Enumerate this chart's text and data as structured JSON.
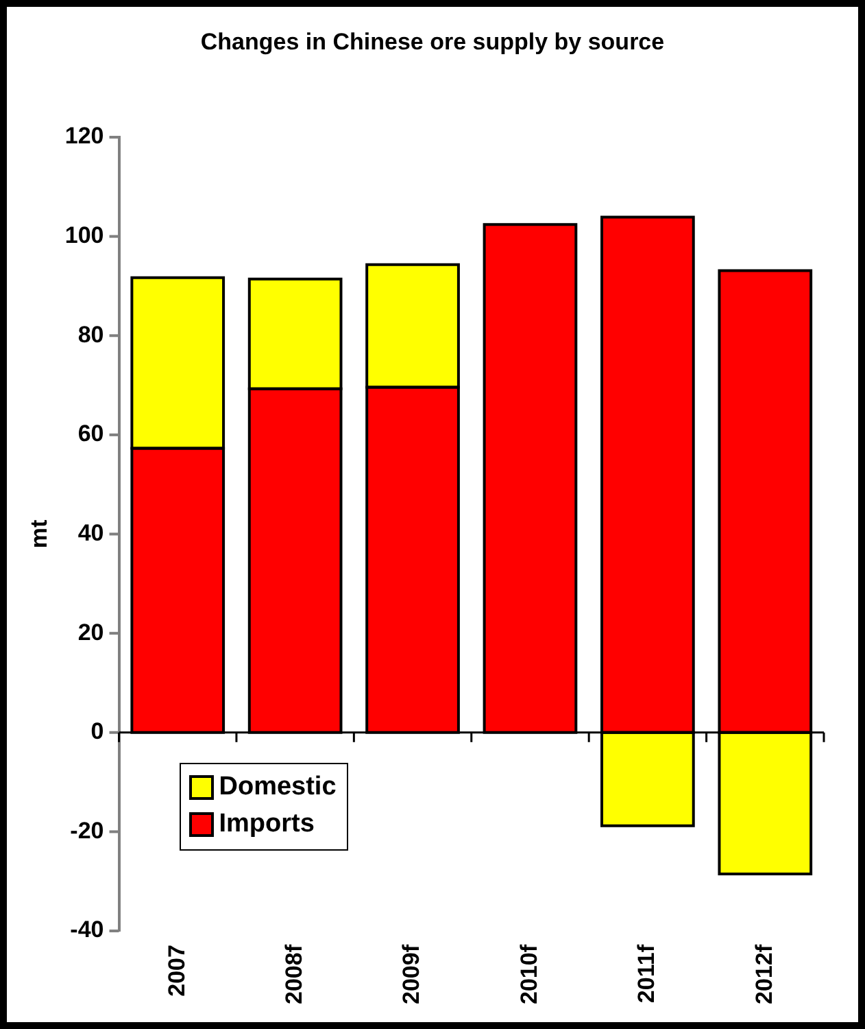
{
  "chart_data": {
    "type": "bar",
    "title": "Changes in Chinese ore supply by source",
    "ylabel": "mt",
    "categories": [
      "2007",
      "2008f",
      "2009f",
      "2010f",
      "2011f",
      "2012f"
    ],
    "series": [
      {
        "name": "Imports",
        "color": "#ff0000",
        "values": [
          57.3,
          69.3,
          69.6,
          102.4,
          103.9,
          93.1
        ]
      },
      {
        "name": "Domestic",
        "color": "#ffff00",
        "values": [
          34.4,
          22.1,
          24.7,
          null,
          -18.8,
          -28.5
        ]
      }
    ],
    "stacked": true,
    "ylim": [
      -40,
      120
    ],
    "yticks": [
      -40,
      -20,
      0,
      20,
      40,
      60,
      80,
      100,
      120
    ],
    "grid": false,
    "ref_lines": [
      {
        "axis": "y",
        "value": 0,
        "color": "#000000"
      }
    ],
    "legend": "bottom left"
  }
}
